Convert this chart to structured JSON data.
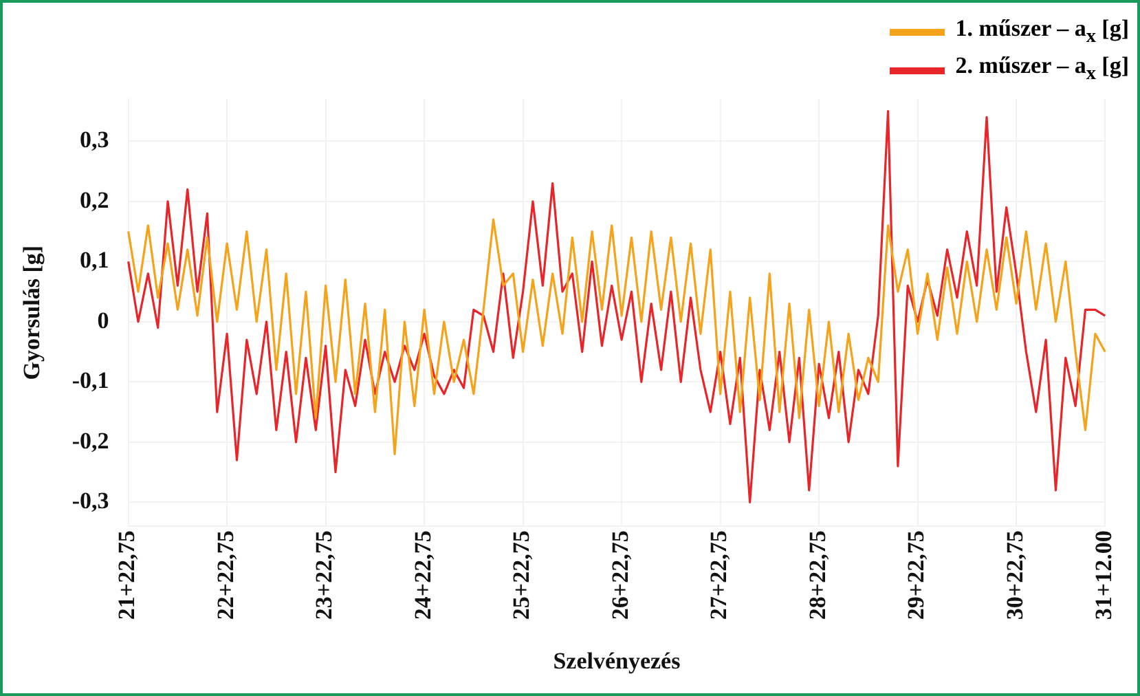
{
  "chart_data": {
    "type": "line",
    "xlabel": "Szelvényezés",
    "ylabel": "Gyorsulás [g]",
    "categories": [
      "21+22,75",
      null,
      null,
      null,
      null,
      null,
      null,
      null,
      null,
      null,
      "22+22,75",
      null,
      null,
      null,
      null,
      null,
      null,
      null,
      null,
      null,
      "23+22,75",
      null,
      null,
      null,
      null,
      null,
      null,
      null,
      null,
      null,
      "24+22,75",
      null,
      null,
      null,
      null,
      null,
      null,
      null,
      null,
      null,
      "25+22,75",
      null,
      null,
      null,
      null,
      null,
      null,
      null,
      null,
      null,
      "26+22,75",
      null,
      null,
      null,
      null,
      null,
      null,
      null,
      null,
      null,
      "27+22,75",
      null,
      null,
      null,
      null,
      null,
      null,
      null,
      null,
      null,
      "28+22,75",
      null,
      null,
      null,
      null,
      null,
      null,
      null,
      null,
      null,
      "29+22,75",
      null,
      null,
      null,
      null,
      null,
      null,
      null,
      null,
      null,
      "30+22,75",
      null,
      null,
      null,
      null,
      null,
      null,
      null,
      null,
      "31+12.00"
    ],
    "series": [
      {
        "name": "1. műszer – a$_{x}$ [g]",
        "color": "#f5a31a",
        "values": [
          0.15,
          0.05,
          0.16,
          0.04,
          0.13,
          0.02,
          0.12,
          0.01,
          0.14,
          0.0,
          0.13,
          0.02,
          0.15,
          0.0,
          0.12,
          -0.08,
          0.08,
          -0.12,
          0.05,
          -0.16,
          0.06,
          -0.1,
          0.07,
          -0.12,
          0.03,
          -0.15,
          0.02,
          -0.22,
          0.0,
          -0.14,
          0.02,
          -0.12,
          0.0,
          -0.1,
          -0.03,
          -0.12,
          0.02,
          0.17,
          0.06,
          0.08,
          -0.05,
          0.07,
          -0.04,
          0.08,
          -0.02,
          0.14,
          0.0,
          0.15,
          0.02,
          0.16,
          0.01,
          0.14,
          0.0,
          0.15,
          0.02,
          0.14,
          0.0,
          0.13,
          -0.02,
          0.12,
          -0.12,
          0.05,
          -0.15,
          0.04,
          -0.13,
          0.08,
          -0.15,
          0.03,
          -0.16,
          0.02,
          -0.14,
          0.0,
          -0.15,
          -0.02,
          -0.13,
          -0.06,
          -0.1,
          0.16,
          0.05,
          0.12,
          -0.02,
          0.08,
          -0.03,
          0.09,
          -0.02,
          0.1,
          0.0,
          0.12,
          0.02,
          0.14,
          0.03,
          0.15,
          0.02,
          0.13,
          0.0,
          0.1,
          -0.05,
          -0.18,
          -0.02,
          -0.05
        ]
      },
      {
        "name": "2. műszer – a$_{x}$ [g]",
        "color": "#e8262a",
        "values": [
          0.1,
          0.0,
          0.08,
          -0.01,
          0.2,
          0.06,
          0.22,
          0.05,
          0.18,
          -0.15,
          -0.02,
          -0.23,
          -0.03,
          -0.12,
          0.0,
          -0.18,
          -0.05,
          -0.2,
          -0.06,
          -0.18,
          -0.04,
          -0.25,
          -0.08,
          -0.14,
          -0.03,
          -0.12,
          -0.05,
          -0.1,
          -0.04,
          -0.08,
          -0.02,
          -0.09,
          -0.12,
          -0.08,
          -0.11,
          0.02,
          0.01,
          -0.05,
          0.08,
          -0.06,
          0.05,
          0.2,
          0.06,
          0.23,
          0.05,
          0.08,
          -0.05,
          0.1,
          -0.04,
          0.06,
          -0.03,
          0.05,
          -0.1,
          0.03,
          -0.08,
          0.05,
          -0.1,
          0.04,
          -0.08,
          -0.15,
          -0.05,
          -0.17,
          -0.06,
          -0.3,
          -0.08,
          -0.18,
          -0.05,
          -0.2,
          -0.06,
          -0.28,
          -0.07,
          -0.16,
          -0.05,
          -0.2,
          -0.08,
          -0.12,
          0.01,
          0.35,
          -0.24,
          0.06,
          0.0,
          0.07,
          0.01,
          0.12,
          0.04,
          0.15,
          0.06,
          0.34,
          0.05,
          0.19,
          0.08,
          -0.05,
          -0.15,
          -0.03,
          -0.28,
          -0.06,
          -0.14,
          0.02,
          0.02,
          0.01
        ]
      }
    ],
    "ylim": [
      -0.34,
      0.37
    ],
    "yticks": [
      {
        "value": -0.3,
        "label": "-0,3"
      },
      {
        "value": -0.2,
        "label": "-0,2"
      },
      {
        "value": -0.1,
        "label": "-0,1"
      },
      0,
      {
        "value": 0.1,
        "label": "0,1"
      },
      {
        "value": 0.2,
        "label": "0,2"
      },
      {
        "value": 0.3,
        "label": "0,3"
      }
    ],
    "grid": true,
    "legend": "top right",
    "marker": "none",
    "line_style": "solid"
  }
}
